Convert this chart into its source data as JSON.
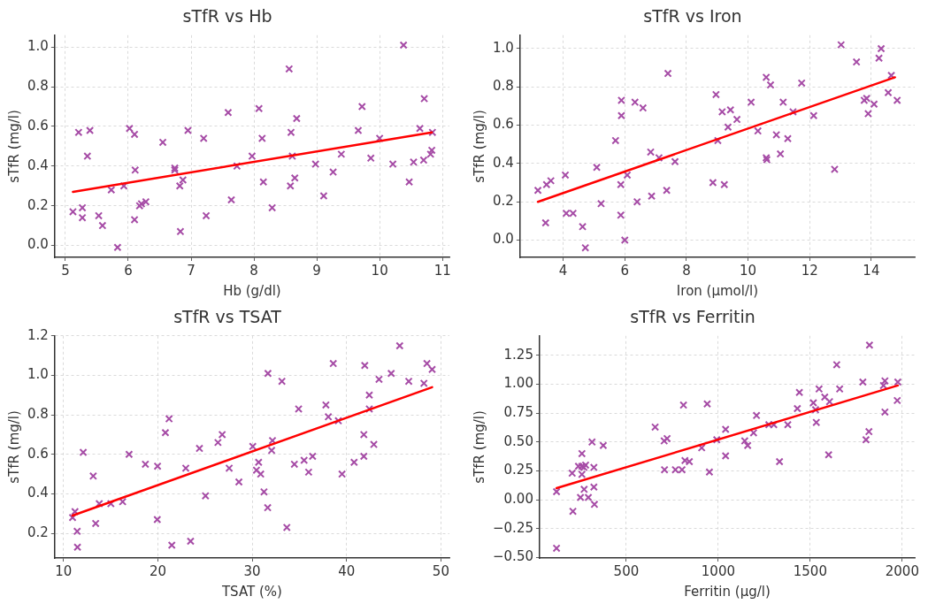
{
  "chart_data": [
    {
      "type": "scatter",
      "title": "sTfR vs Hb",
      "xlabel": "Hb (g/dl)",
      "ylabel": "sTfR (mg/l)",
      "xlim": [
        4.83,
        11.11
      ],
      "ylim": [
        -0.06,
        1.06
      ],
      "xticks": [
        5,
        6,
        7,
        8,
        9,
        10,
        11
      ],
      "yticks": [
        {
          "value": 0,
          "label": "0.0"
        },
        0.2,
        0.4,
        0.6,
        0.8,
        {
          "value": 1,
          "label": "1.0"
        }
      ],
      "grid": true,
      "series": [
        {
          "color": "#a64ca6",
          "marker": "cross",
          "x": [
            5.12,
            5.21,
            5.27,
            5.27,
            5.35,
            5.39,
            5.53,
            5.59,
            5.73,
            5.83,
            5.93,
            6.02,
            6.1,
            6.1,
            6.11,
            6.18,
            6.21,
            6.28,
            6.55,
            6.74,
            6.74,
            6.82,
            6.83,
            6.87,
            6.95,
            7.2,
            7.24,
            7.59,
            7.64,
            7.73,
            7.97,
            8.08,
            8.13,
            8.15,
            8.29,
            8.56,
            8.59,
            8.58,
            8.61,
            8.65,
            8.68,
            8.98,
            9.11,
            9.26,
            9.39,
            9.66,
            9.72,
            9.86,
            10.0,
            10.21,
            10.38,
            10.47,
            10.54,
            10.64,
            10.7,
            10.71,
            10.81,
            10.83,
            10.84
          ],
          "values": [
            0.17,
            0.57,
            0.19,
            0.14,
            0.45,
            0.58,
            0.15,
            0.1,
            0.28,
            -0.01,
            0.3,
            0.59,
            0.56,
            0.13,
            0.38,
            0.2,
            0.21,
            0.22,
            0.52,
            0.39,
            0.38,
            0.3,
            0.07,
            0.33,
            0.58,
            0.54,
            0.15,
            0.67,
            0.23,
            0.4,
            0.45,
            0.69,
            0.54,
            0.32,
            0.19,
            0.89,
            0.57,
            0.3,
            0.45,
            0.34,
            0.64,
            0.41,
            0.25,
            0.37,
            0.46,
            0.58,
            0.7,
            0.44,
            0.54,
            0.41,
            1.01,
            0.32,
            0.42,
            0.59,
            0.43,
            0.74,
            0.46,
            0.48,
            0.57
          ]
        },
        {
          "type": "line",
          "color": "#ff0000",
          "x": [
            5.12,
            10.83
          ],
          "values": [
            0.27,
            0.57
          ]
        }
      ]
    },
    {
      "type": "scatter",
      "title": "sTfR vs Iron",
      "xlabel": "Iron (µmol/l)",
      "ylabel": "sTfR (mg/l)",
      "xlim": [
        2.6,
        15.41
      ],
      "ylim": [
        -0.09,
        1.07
      ],
      "xticks": [
        4,
        6,
        8,
        10,
        12,
        14
      ],
      "yticks": [
        {
          "value": 0,
          "label": "0.0"
        },
        0.2,
        0.4,
        0.6,
        0.8,
        {
          "value": 1,
          "label": "1.0"
        }
      ],
      "grid": true,
      "series": [
        {
          "color": "#a64ca6",
          "marker": "cross",
          "x": [
            3.18,
            3.46,
            3.6,
            3.43,
            4.07,
            4.1,
            4.32,
            4.63,
            4.72,
            5.09,
            5.23,
            5.7,
            5.87,
            5.87,
            5.89,
            5.89,
            6.0,
            6.08,
            6.33,
            6.4,
            6.59,
            6.84,
            6.87,
            7.11,
            7.36,
            7.4,
            7.63,
            8.86,
            8.96,
            9.02,
            9.16,
            9.23,
            9.43,
            9.35,
            9.64,
            10.1,
            10.32,
            10.59,
            10.59,
            10.61,
            10.73,
            10.92,
            11.05,
            11.14,
            11.29,
            11.46,
            11.74,
            12.13,
            12.81,
            13.02,
            13.52,
            13.77,
            13.85,
            13.9,
            14.09,
            14.25,
            14.32,
            14.55,
            14.65,
            14.84
          ],
          "values": [
            0.26,
            0.29,
            0.31,
            0.09,
            0.34,
            0.14,
            0.14,
            0.07,
            -0.04,
            0.38,
            0.19,
            0.52,
            0.29,
            0.13,
            0.73,
            0.65,
            0.0,
            0.34,
            0.72,
            0.2,
            0.69,
            0.46,
            0.23,
            0.43,
            0.26,
            0.87,
            0.41,
            0.3,
            0.76,
            0.52,
            0.67,
            0.29,
            0.68,
            0.59,
            0.63,
            0.72,
            0.57,
            0.85,
            0.43,
            0.42,
            0.81,
            0.55,
            0.45,
            0.72,
            0.53,
            0.67,
            0.82,
            0.65,
            0.37,
            1.02,
            0.93,
            0.73,
            0.74,
            0.66,
            0.71,
            0.95,
            1.0,
            0.77,
            0.86,
            0.73
          ]
        },
        {
          "type": "line",
          "color": "#ff0000",
          "x": [
            3.18,
            14.77
          ],
          "values": [
            0.2,
            0.85
          ]
        }
      ]
    },
    {
      "type": "scatter",
      "title": "sTfR vs TSAT",
      "xlabel": "TSAT (%)",
      "ylabel": "sTfR (mg/l)",
      "xlim": [
        9.07,
        50.9
      ],
      "ylim": [
        0.075,
        1.2
      ],
      "xticks": [
        10,
        20,
        30,
        40,
        50
      ],
      "yticks": [
        0.2,
        0.4,
        0.6,
        0.8,
        {
          "value": 1,
          "label": "1.0"
        },
        1.2
      ],
      "grid": true,
      "series": [
        {
          "color": "#a64ca6",
          "marker": "cross",
          "x": [
            10.96,
            11.22,
            11.45,
            11.48,
            12.09,
            13.15,
            13.41,
            13.79,
            15.02,
            16.27,
            16.95,
            18.68,
            19.97,
            19.94,
            20.8,
            21.19,
            21.48,
            22.96,
            23.47,
            24.41,
            25.05,
            26.37,
            26.82,
            27.56,
            28.59,
            30.06,
            30.45,
            30.68,
            30.9,
            31.25,
            31.67,
            31.64,
            32.06,
            32.15,
            33.15,
            33.67,
            34.47,
            34.92,
            35.5,
            35.98,
            36.4,
            37.81,
            38.07,
            38.59,
            39.13,
            39.52,
            40.8,
            41.83,
            41.83,
            41.93,
            42.41,
            42.41,
            42.89,
            43.44,
            44.73,
            45.63,
            46.59,
            48.2,
            48.52,
            49.07
          ],
          "values": [
            0.28,
            0.31,
            0.21,
            0.13,
            0.61,
            0.49,
            0.25,
            0.35,
            0.35,
            0.36,
            0.6,
            0.55,
            0.54,
            0.27,
            0.71,
            0.78,
            0.14,
            0.53,
            0.16,
            0.63,
            0.39,
            0.66,
            0.7,
            0.53,
            0.46,
            0.64,
            0.52,
            0.56,
            0.5,
            0.41,
            1.01,
            0.33,
            0.62,
            0.67,
            0.97,
            0.23,
            0.55,
            0.83,
            0.57,
            0.51,
            0.59,
            0.85,
            0.79,
            1.06,
            0.77,
            0.5,
            0.56,
            0.59,
            0.7,
            1.05,
            0.9,
            0.83,
            0.65,
            0.98,
            1.01,
            1.15,
            0.97,
            0.96,
            1.06,
            1.03
          ]
        },
        {
          "type": "line",
          "color": "#ff0000",
          "x": [
            10.96,
            49.07
          ],
          "values": [
            0.29,
            0.94
          ]
        }
      ]
    },
    {
      "type": "scatter",
      "title": "sTfR vs Ferritin",
      "xlabel": "Ferritin (µg/l)",
      "ylabel": "sTfR (mg/l)",
      "xlim": [
        29,
        2068
      ],
      "ylim": [
        -0.505,
        1.42
      ],
      "xticks": [
        500,
        1000,
        1500,
        2000
      ],
      "yticks": [
        {
          "value": -0.5,
          "label": "−0.50"
        },
        {
          "value": -0.25,
          "label": "−0.25"
        },
        {
          "value": 0,
          "label": "0.00"
        },
        {
          "value": 0.25,
          "label": "0.25"
        },
        {
          "value": 0.5,
          "label": "0.50"
        },
        {
          "value": 0.75,
          "label": "0.75"
        },
        {
          "value": 1,
          "label": "1.00"
        },
        {
          "value": 1.25,
          "label": "1.25"
        }
      ],
      "grid": true,
      "series": [
        {
          "color": "#a64ca6",
          "marker": "cross",
          "x": [
            121,
            121,
            206,
            210,
            240,
            251,
            259,
            259,
            259,
            270,
            271,
            279,
            294,
            314,
            324,
            324,
            327,
            375,
            657,
            706,
            722,
            708,
            767,
            803,
            811,
            819,
            843,
            910,
            940,
            952,
            992,
            1040,
            1040,
            1144,
            1160,
            1192,
            1208,
            1275,
            1302,
            1333,
            1378,
            1430,
            1441,
            1517,
            1529,
            1533,
            1548,
            1579,
            1600,
            1605,
            1644,
            1660,
            1786,
            1803,
            1819,
            1822,
            1898,
            1906,
            1906,
            1973,
            1976
          ],
          "values": [
            0.07,
            -0.42,
            0.23,
            -0.1,
            0.29,
            0.02,
            0.4,
            0.22,
            0.29,
            0.28,
            0.09,
            0.3,
            0.02,
            0.5,
            0.28,
            0.11,
            -0.04,
            0.47,
            0.63,
            0.51,
            0.53,
            0.26,
            0.26,
            0.26,
            0.82,
            0.34,
            0.33,
            0.45,
            0.83,
            0.24,
            0.52,
            0.61,
            0.38,
            0.51,
            0.47,
            0.58,
            0.73,
            0.65,
            0.65,
            0.33,
            0.65,
            0.79,
            0.93,
            0.84,
            0.78,
            0.67,
            0.96,
            0.89,
            0.39,
            0.85,
            1.17,
            0.96,
            1.02,
            0.52,
            0.59,
            1.34,
            0.99,
            1.03,
            0.76,
            0.86,
            1.02
          ]
        },
        {
          "type": "line",
          "color": "#ff0000",
          "x": [
            121,
            1976
          ],
          "values": [
            0.1,
            0.99
          ]
        }
      ]
    }
  ]
}
